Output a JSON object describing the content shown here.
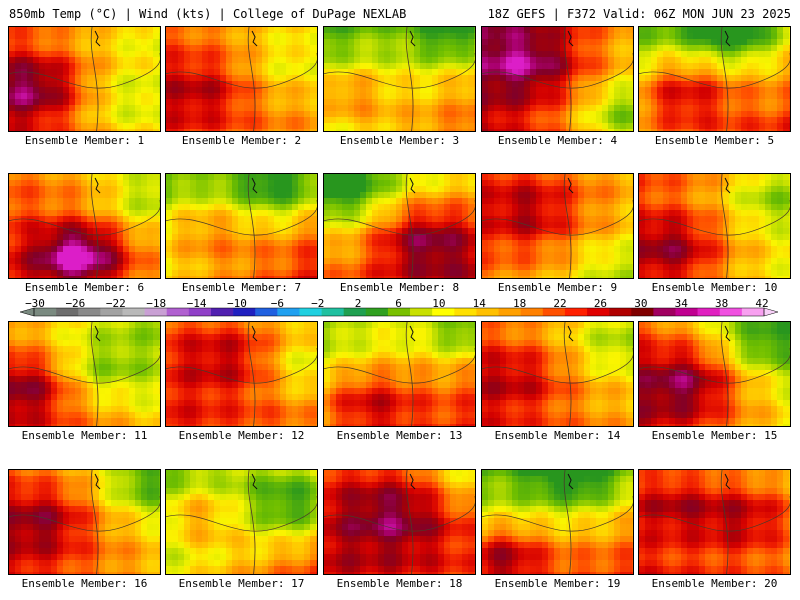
{
  "header": {
    "left": "850mb Temp (°C) | Wind (kts) | College of DuPage NEXLAB",
    "right": "18Z GEFS | F372 Valid: 06Z MON JUN 23 2025"
  },
  "members": [
    {
      "label": "Ensemble Member: 1",
      "base": 20,
      "grad": [
        0.7,
        -0.2
      ],
      "hot": [
        [
          0.15,
          0.55,
          10,
          0.35
        ],
        [
          0.7,
          0.7,
          -4,
          0.3
        ]
      ]
    },
    {
      "label": "Ensemble Member: 2",
      "base": 22,
      "grad": [
        0.3,
        -0.1
      ],
      "hot": [
        [
          0.2,
          0.6,
          6,
          0.35
        ],
        [
          0.8,
          0.3,
          -5,
          0.35
        ]
      ]
    },
    {
      "label": "Ensemble Member: 3",
      "base": 16,
      "grad": [
        -0.8,
        -0.6
      ],
      "hot": [
        [
          0.1,
          0.6,
          8,
          0.3
        ],
        [
          0.85,
          0.05,
          -10,
          0.3
        ]
      ]
    },
    {
      "label": "Ensemble Member: 4",
      "base": 24,
      "grad": [
        0.9,
        0.1
      ],
      "hot": [
        [
          0.3,
          0.3,
          8,
          0.35
        ],
        [
          0.9,
          0.8,
          -8,
          0.3
        ]
      ]
    },
    {
      "label": "Ensemble Member: 5",
      "base": 18,
      "grad": [
        -0.6,
        -0.8
      ],
      "hot": [
        [
          0.25,
          0.6,
          10,
          0.35
        ],
        [
          0.6,
          0.0,
          -12,
          0.3
        ]
      ]
    },
    {
      "label": "Ensemble Member: 6",
      "base": 22,
      "grad": [
        0.5,
        -0.3
      ],
      "hot": [
        [
          0.45,
          0.75,
          14,
          0.3
        ],
        [
          0.9,
          0.2,
          -6,
          0.3
        ]
      ]
    },
    {
      "label": "Ensemble Member: 7",
      "base": 18,
      "grad": [
        -0.9,
        -0.7
      ],
      "hot": [
        [
          0.2,
          0.5,
          6,
          0.35
        ],
        [
          0.75,
          0.05,
          -12,
          0.35
        ]
      ]
    },
    {
      "label": "Ensemble Member: 8",
      "base": 20,
      "grad": [
        -0.5,
        -0.9
      ],
      "hot": [
        [
          0.65,
          0.6,
          10,
          0.35
        ],
        [
          0.1,
          0.1,
          -10,
          0.3
        ]
      ]
    },
    {
      "label": "Ensemble Member: 9",
      "base": 21,
      "grad": [
        0.4,
        0.2
      ],
      "hot": [
        [
          0.3,
          0.35,
          7,
          0.35
        ],
        [
          0.85,
          0.9,
          -5,
          0.3
        ]
      ]
    },
    {
      "label": "Ensemble Member: 10",
      "base": 20,
      "grad": [
        0.6,
        0.1
      ],
      "hot": [
        [
          0.2,
          0.7,
          9,
          0.35
        ],
        [
          0.85,
          0.2,
          -6,
          0.3
        ]
      ]
    },
    {
      "label": "Ensemble Member: 11",
      "base": 19,
      "grad": [
        0.8,
        -0.5
      ],
      "hot": [
        [
          0.1,
          0.6,
          8,
          0.3
        ],
        [
          0.6,
          0.4,
          -6,
          0.3
        ]
      ]
    },
    {
      "label": "Ensemble Member: 12",
      "base": 23,
      "grad": [
        0.4,
        -0.3
      ],
      "hot": [
        [
          0.4,
          0.3,
          6,
          0.35
        ],
        [
          0.9,
          0.4,
          -6,
          0.3
        ]
      ]
    },
    {
      "label": "Ensemble Member: 13",
      "base": 19,
      "grad": [
        -0.7,
        -0.6
      ],
      "hot": [
        [
          0.25,
          0.75,
          9,
          0.35
        ],
        [
          0.95,
          0.05,
          -10,
          0.3
        ]
      ]
    },
    {
      "label": "Ensemble Member: 14",
      "base": 21,
      "grad": [
        0.5,
        -0.3
      ],
      "hot": [
        [
          0.2,
          0.5,
          6,
          0.35
        ],
        [
          0.85,
          0.2,
          -5,
          0.3
        ]
      ]
    },
    {
      "label": "Ensemble Member: 15",
      "base": 20,
      "grad": [
        0.9,
        -0.4
      ],
      "hot": [
        [
          0.3,
          0.55,
          10,
          0.35
        ],
        [
          0.8,
          0.15,
          -8,
          0.3
        ]
      ]
    },
    {
      "label": "Ensemble Member: 16",
      "base": 21,
      "grad": [
        0.6,
        -0.4
      ],
      "hot": [
        [
          0.2,
          0.45,
          8,
          0.35
        ],
        [
          0.9,
          0.1,
          -8,
          0.3
        ]
      ]
    },
    {
      "label": "Ensemble Member: 17",
      "base": 17,
      "grad": [
        -0.9,
        -0.5
      ],
      "hot": [
        [
          0.15,
          0.4,
          7,
          0.3
        ],
        [
          0.85,
          0.3,
          -12,
          0.35
        ]
      ]
    },
    {
      "label": "Ensemble Member: 18",
      "base": 25,
      "grad": [
        0.3,
        -0.3
      ],
      "hot": [
        [
          0.45,
          0.4,
          8,
          0.4
        ],
        [
          0.95,
          0.05,
          -6,
          0.3
        ]
      ]
    },
    {
      "label": "Ensemble Member: 19",
      "base": 18,
      "grad": [
        -0.4,
        -1.0
      ],
      "hot": [
        [
          0.1,
          0.8,
          10,
          0.3
        ],
        [
          0.6,
          0.0,
          -10,
          0.35
        ]
      ]
    },
    {
      "label": "Ensemble Member: 20",
      "base": 22,
      "grad": [
        0.4,
        -0.4
      ],
      "hot": [
        [
          0.7,
          0.4,
          8,
          0.35
        ],
        [
          0.2,
          0.3,
          6,
          0.3
        ]
      ]
    }
  ],
  "colorbar": {
    "ticks": [
      "−30",
      "−26",
      "−22",
      "−18",
      "−14",
      "−10",
      "−6",
      "−2",
      "2",
      "6",
      "10",
      "14",
      "18",
      "22",
      "26",
      "30",
      "34",
      "38",
      "42"
    ],
    "colors": [
      "#7a8a80",
      "#6e6e6e",
      "#8a8a8a",
      "#a2a2a2",
      "#b9b9b9",
      "#c9a0d4",
      "#b060d0",
      "#9040c8",
      "#5020b0",
      "#2020c0",
      "#2060e0",
      "#20a0f0",
      "#20d0e0",
      "#20c0a0",
      "#20a050",
      "#30a020",
      "#78c000",
      "#c8e000",
      "#ffff00",
      "#ffe000",
      "#ffc000",
      "#ffa000",
      "#ff8000",
      "#ff5000",
      "#ff2000",
      "#e00000",
      "#b00000",
      "#800000",
      "#a00060",
      "#c00090",
      "#e020c0",
      "#f050e0",
      "#f8a0f0"
    ]
  }
}
